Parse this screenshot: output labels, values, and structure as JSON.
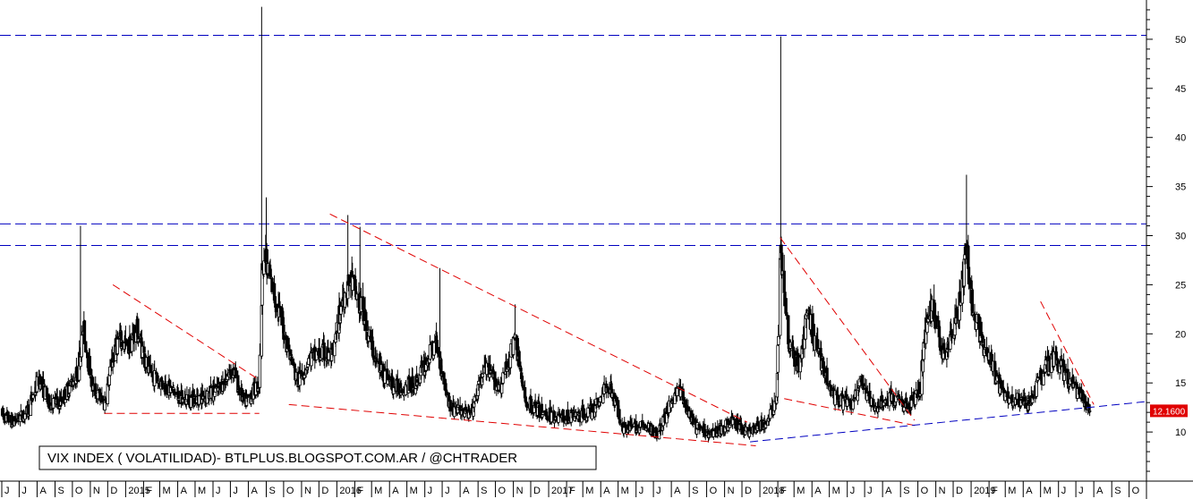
{
  "chart_data": {
    "type": "candlestick",
    "title": "VIX INDEX ( VOLATILIDAD)- BTLPLUS.BLOGSPOT.COM.AR / @CHTRADER",
    "last_value_label": "12.1600",
    "last_value": 12.16,
    "ylim": [
      5,
      54
    ],
    "y_ticks": [
      10,
      15,
      20,
      25,
      30,
      35,
      40,
      45,
      50
    ],
    "x_start": "2014-06-01",
    "x_end": "2019-10-31",
    "x_month_labels": [
      "J",
      "J",
      "A",
      "S",
      "O",
      "N",
      "D",
      "2015",
      "F",
      "M",
      "A",
      "M",
      "J",
      "J",
      "A",
      "S",
      "O",
      "N",
      "D",
      "2016",
      "F",
      "M",
      "A",
      "M",
      "J",
      "J",
      "A",
      "S",
      "O",
      "N",
      "D",
      "2017",
      "F",
      "M",
      "A",
      "M",
      "J",
      "J",
      "A",
      "S",
      "O",
      "N",
      "D",
      "2018",
      "F",
      "M",
      "A",
      "M",
      "J",
      "J",
      "A",
      "S",
      "O",
      "N",
      "D",
      "2019",
      "F",
      "M",
      "A",
      "M",
      "J",
      "J",
      "A",
      "S",
      "O"
    ],
    "colors": {
      "background": "#ffffff",
      "candles": "#000000",
      "trend_red": "#e00000",
      "trend_blue": "#0000c0",
      "last_label_bg": "#e00000"
    },
    "horizontal_levels": [
      {
        "value": 50.4,
        "color": "#0000c0"
      },
      {
        "value": 31.2,
        "color": "#0000c0"
      },
      {
        "value": 29.0,
        "color": "#0000c0"
      }
    ],
    "trendlines": [
      {
        "color": "#e00000",
        "from": [
          "2014-12-10",
          25.0
        ],
        "to": [
          "2015-08-15",
          15.5
        ]
      },
      {
        "color": "#e00000",
        "from": [
          "2014-11-25",
          11.9
        ],
        "to": [
          "2015-08-20",
          11.9
        ]
      },
      {
        "color": "#e00000",
        "from": [
          "2015-12-20",
          32.2
        ],
        "to": [
          "2017-12-10",
          11.0
        ]
      },
      {
        "color": "#e00000",
        "from": [
          "2015-10-10",
          12.8
        ],
        "to": [
          "2017-12-25",
          8.6
        ]
      },
      {
        "color": "#e00000",
        "from": [
          "2018-02-05",
          29.8
        ],
        "to": [
          "2018-09-25",
          11.2
        ]
      },
      {
        "color": "#e00000",
        "from": [
          "2018-02-12",
          13.4
        ],
        "to": [
          "2018-10-01",
          10.6
        ]
      },
      {
        "color": "#e00000",
        "from": [
          "2019-05-01",
          23.3
        ],
        "to": [
          "2019-08-01",
          12.8
        ]
      },
      {
        "color": "#0000c0",
        "from": [
          "2017-12-15",
          9.0
        ],
        "to": [
          "2019-10-31",
          13.1
        ]
      }
    ],
    "series": [
      {
        "anchors": [
          [
            "2014-06-01",
            11.8
          ],
          [
            "2014-06-20",
            11.0
          ],
          [
            "2014-07-15",
            12.0
          ],
          [
            "2014-08-05",
            15.5
          ],
          [
            "2014-08-20",
            13.0
          ],
          [
            "2014-09-10",
            13.0
          ],
          [
            "2014-10-10",
            16.0
          ],
          [
            "2014-10-20",
            20.5
          ],
          [
            "2014-11-05",
            14.5
          ],
          [
            "2014-11-25",
            12.8
          ],
          [
            "2014-12-10",
            17.5
          ],
          [
            "2014-12-20",
            19.5
          ],
          [
            "2015-01-05",
            18.5
          ],
          [
            "2015-01-20",
            20.5
          ],
          [
            "2015-02-10",
            16.0
          ],
          [
            "2015-03-10",
            14.8
          ],
          [
            "2015-04-10",
            13.2
          ],
          [
            "2015-05-10",
            13.5
          ],
          [
            "2015-06-10",
            14.2
          ],
          [
            "2015-07-05",
            16.5
          ],
          [
            "2015-07-25",
            12.8
          ],
          [
            "2015-08-20",
            15.0
          ],
          [
            "2015-08-26",
            28.0
          ],
          [
            "2015-09-15",
            24.0
          ],
          [
            "2015-10-05",
            19.5
          ],
          [
            "2015-10-25",
            15.0
          ],
          [
            "2015-11-15",
            17.5
          ],
          [
            "2015-12-10",
            18.0
          ],
          [
            "2015-12-25",
            17.5
          ],
          [
            "2016-01-10",
            23.5
          ],
          [
            "2016-01-25",
            25.5
          ],
          [
            "2016-02-15",
            22.0
          ],
          [
            "2016-03-10",
            17.0
          ],
          [
            "2016-04-10",
            14.5
          ],
          [
            "2016-05-15",
            14.8
          ],
          [
            "2016-06-20",
            19.0
          ],
          [
            "2016-06-28",
            17.0
          ],
          [
            "2016-07-15",
            12.5
          ],
          [
            "2016-08-20",
            11.7
          ],
          [
            "2016-09-12",
            16.5
          ],
          [
            "2016-10-10",
            14.5
          ],
          [
            "2016-11-05",
            19.5
          ],
          [
            "2016-11-20",
            13.2
          ],
          [
            "2016-12-20",
            12.0
          ],
          [
            "2017-01-20",
            11.5
          ],
          [
            "2017-02-20",
            11.6
          ],
          [
            "2017-03-20",
            12.2
          ],
          [
            "2017-04-15",
            15.0
          ],
          [
            "2017-05-10",
            10.5
          ],
          [
            "2017-06-10",
            10.5
          ],
          [
            "2017-07-10",
            10.0
          ],
          [
            "2017-08-12",
            14.5
          ],
          [
            "2017-09-10",
            10.5
          ],
          [
            "2017-10-10",
            9.8
          ],
          [
            "2017-11-15",
            11.0
          ],
          [
            "2017-12-10",
            10.0
          ],
          [
            "2018-01-15",
            11.0
          ],
          [
            "2018-01-30",
            13.5
          ],
          [
            "2018-02-06",
            29.0
          ],
          [
            "2018-02-20",
            19.0
          ],
          [
            "2018-03-10",
            16.5
          ],
          [
            "2018-03-25",
            22.0
          ],
          [
            "2018-04-10",
            18.5
          ],
          [
            "2018-05-10",
            13.5
          ],
          [
            "2018-06-10",
            12.8
          ],
          [
            "2018-06-25",
            15.0
          ],
          [
            "2018-07-15",
            12.5
          ],
          [
            "2018-08-15",
            13.5
          ],
          [
            "2018-09-15",
            12.5
          ],
          [
            "2018-10-05",
            14.5
          ],
          [
            "2018-10-15",
            21.0
          ],
          [
            "2018-10-25",
            22.5
          ],
          [
            "2018-11-15",
            18.0
          ],
          [
            "2018-12-10",
            22.0
          ],
          [
            "2018-12-24",
            28.5
          ],
          [
            "2019-01-05",
            22.0
          ],
          [
            "2019-01-25",
            18.5
          ],
          [
            "2019-02-20",
            14.5
          ],
          [
            "2019-03-10",
            13.5
          ],
          [
            "2019-04-10",
            12.8
          ],
          [
            "2019-05-10",
            16.5
          ],
          [
            "2019-05-28",
            17.5
          ],
          [
            "2019-06-15",
            15.5
          ],
          [
            "2019-07-10",
            13.5
          ],
          [
            "2019-07-25",
            12.16
          ]
        ]
      }
    ],
    "spikes": [
      [
        "2014-10-15",
        31.0
      ],
      [
        "2015-08-24",
        53.3
      ],
      [
        "2015-09-01",
        33.9
      ],
      [
        "2016-01-20",
        32.1
      ],
      [
        "2016-02-10",
        30.9
      ],
      [
        "2016-06-27",
        26.7
      ],
      [
        "2016-11-04",
        23.0
      ],
      [
        "2018-02-06",
        50.3
      ],
      [
        "2018-12-24",
        36.2
      ]
    ]
  }
}
